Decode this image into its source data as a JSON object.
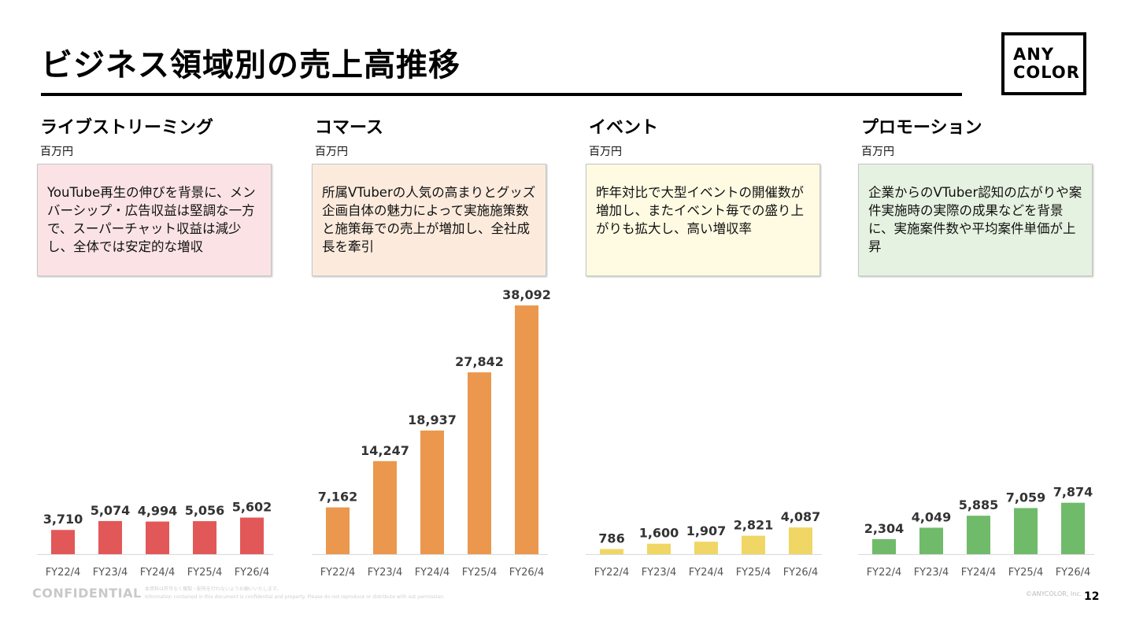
{
  "page": {
    "title": "ビジネス領域別の売上高推移",
    "logo_line1": "ANY",
    "logo_line2": "COLOR",
    "confidential": "CONFIDENTIAL",
    "disclaimer_line1": "本資料は許可なく複製・配布を行わないようお願いいたします。",
    "disclaimer_line2": "Information contained in this document is confidential and property. Please do not reproduce or distribute with out permission.",
    "copyright": "©ANYCOLOR, Inc.",
    "page_number": "12"
  },
  "panels": [
    {
      "title": "ライブストリーミング",
      "unit": "百万円",
      "note": "YouTube再生の伸びを背景に、メンバーシップ・広告収益は堅調な一方で、スーパーチャット収益は減少し、全体では安定的な増収",
      "note_bg": "#fbe3e5",
      "bar_color": "#e25858"
    },
    {
      "title": "コマース",
      "unit": "百万円",
      "note": "所属VTuberの人気の高まりとグッズ企画自体の魅力によって実施施策数と施策毎での売上が増加し、全社成長を牽引",
      "note_bg": "#fcebdd",
      "bar_color": "#eb984e"
    },
    {
      "title": "イベント",
      "unit": "百万円",
      "note": "昨年対比で大型イベントの開催数が増加し、またイベント毎での盛り上がりも拡大し、高い増収率",
      "note_bg": "#fefbe2",
      "bar_color": "#f0d664"
    },
    {
      "title": "プロモーション",
      "unit": "百万円",
      "note": "企業からのVTuber認知の広がりや案件実施時の実際の成果などを背景に、実施案件数や平均案件単価が上昇",
      "note_bg": "#e6f2e1",
      "bar_color": "#6fbb6a"
    }
  ],
  "chart_data": [
    {
      "type": "bar",
      "title": "ライブストリーミング",
      "ylabel": "百万円",
      "categories": [
        "FY22/4",
        "FY23/4",
        "FY24/4",
        "FY25/4",
        "FY26/4"
      ],
      "values": [
        3710,
        5074,
        4994,
        5056,
        5602
      ],
      "labels": [
        "3,710",
        "5,074",
        "4,994",
        "5,056",
        "5,602"
      ]
    },
    {
      "type": "bar",
      "title": "コマース",
      "ylabel": "百万円",
      "categories": [
        "FY22/4",
        "FY23/4",
        "FY24/4",
        "FY25/4",
        "FY26/4"
      ],
      "values": [
        7162,
        14247,
        18937,
        27842,
        38092
      ],
      "labels": [
        "7,162",
        "14,247",
        "18,937",
        "27,842",
        "38,092"
      ]
    },
    {
      "type": "bar",
      "title": "イベント",
      "ylabel": "百万円",
      "categories": [
        "FY22/4",
        "FY23/4",
        "FY24/4",
        "FY25/4",
        "FY26/4"
      ],
      "values": [
        786,
        1600,
        1907,
        2821,
        4087
      ],
      "labels": [
        "786",
        "1,600",
        "1,907",
        "2,821",
        "4,087"
      ]
    },
    {
      "type": "bar",
      "title": "プロモーション",
      "ylabel": "百万円",
      "categories": [
        "FY22/4",
        "FY23/4",
        "FY24/4",
        "FY25/4",
        "FY26/4"
      ],
      "values": [
        2304,
        4049,
        5885,
        7059,
        7874
      ],
      "labels": [
        "2,304",
        "4,049",
        "5,885",
        "7,059",
        "7,874"
      ]
    }
  ]
}
